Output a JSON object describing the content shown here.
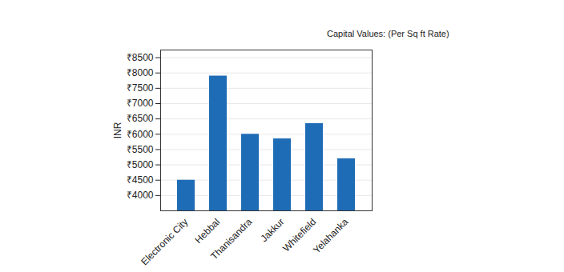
{
  "chart_data": {
    "type": "bar",
    "title": "Capital Values: (Per Sq ft Rate)",
    "y_label": "INR",
    "categories": [
      "Electronic City",
      "Hebbal",
      "Thanisandra",
      "Jakkur",
      "Whitefield",
      "Yelahanka"
    ],
    "values": [
      4500,
      7900,
      6000,
      5850,
      6350,
      5200
    ],
    "color": "#1f6cb6",
    "ylim": [
      3500,
      8750
    ],
    "yticks": [
      {
        "value": 4000,
        "label": "₹4000"
      },
      {
        "value": 4500,
        "label": "₹4500"
      },
      {
        "value": 5000,
        "label": "₹5000"
      },
      {
        "value": 5500,
        "label": "₹5500"
      },
      {
        "value": 6000,
        "label": "₹6000"
      },
      {
        "value": 6500,
        "label": "₹6500"
      },
      {
        "value": 7000,
        "label": "₹7000"
      },
      {
        "value": 7500,
        "label": "₹7500"
      },
      {
        "value": 8000,
        "label": "₹8000"
      },
      {
        "value": 8500,
        "label": "₹8500"
      }
    ],
    "grid": true
  }
}
